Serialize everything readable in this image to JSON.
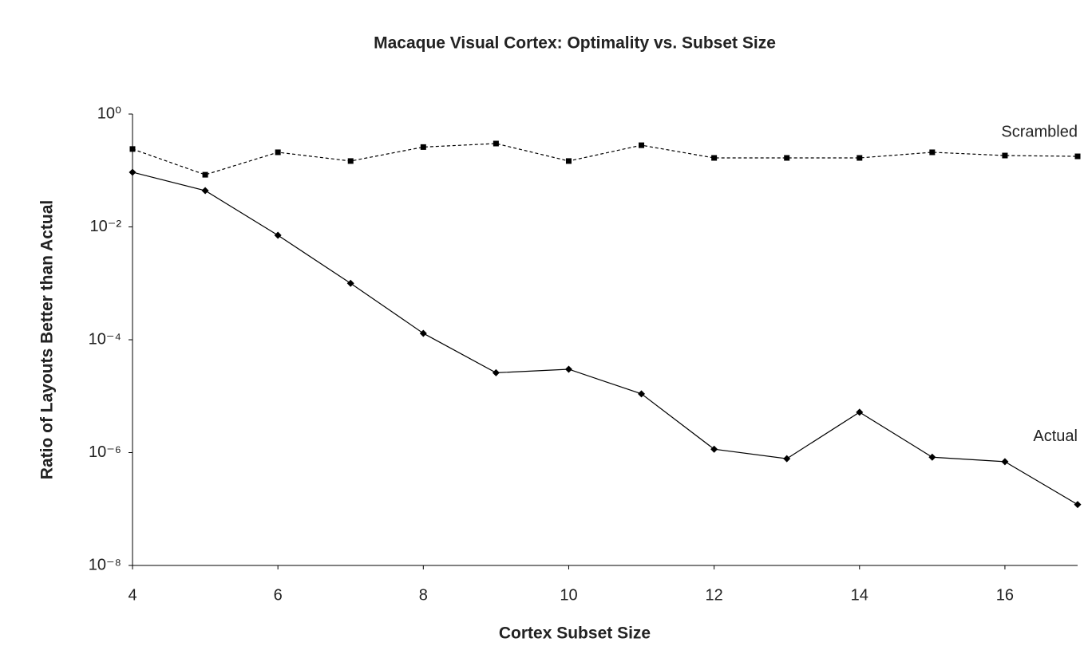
{
  "chart_data": {
    "type": "line",
    "title": "Macaque Visual Cortex:  Optimality vs. Subset Size",
    "xlabel": "Cortex Subset Size",
    "ylabel": "Ratio of Layouts Better than Actual",
    "x": [
      4,
      5,
      6,
      7,
      8,
      9,
      10,
      11,
      12,
      13,
      14,
      15,
      16,
      17
    ],
    "series": [
      {
        "name": "Scrambled",
        "color": "#000000",
        "dash": true,
        "marker": "square",
        "values": [
          0.24,
          0.084,
          0.21,
          0.147,
          0.26,
          0.3,
          0.147,
          0.28,
          0.167,
          0.167,
          0.167,
          0.21,
          0.184,
          0.178
        ]
      },
      {
        "name": "Actual",
        "color": "#000000",
        "dash": false,
        "marker": "diamond",
        "values": [
          0.093,
          0.044,
          0.0071,
          0.001,
          0.00013,
          2.6e-05,
          3e-05,
          1.1e-05,
          1.15e-06,
          7.8e-07,
          5.2e-06,
          8.3e-07,
          6.9e-07,
          1.2e-07
        ]
      }
    ],
    "xlim": [
      4,
      17
    ],
    "xticks": [
      4,
      6,
      8,
      10,
      12,
      14,
      16
    ],
    "ylim": [
      1e-08,
      1
    ],
    "log_y": true,
    "yticks": [
      {
        "value": 1,
        "label": "10⁰"
      },
      {
        "value": 0.01,
        "label": "10⁻²"
      },
      {
        "value": 0.0001,
        "label": "10⁻⁴"
      },
      {
        "value": 1e-06,
        "label": "10⁻⁶"
      },
      {
        "value": 1e-08,
        "label": "10⁻⁸"
      }
    ],
    "grid": false
  }
}
